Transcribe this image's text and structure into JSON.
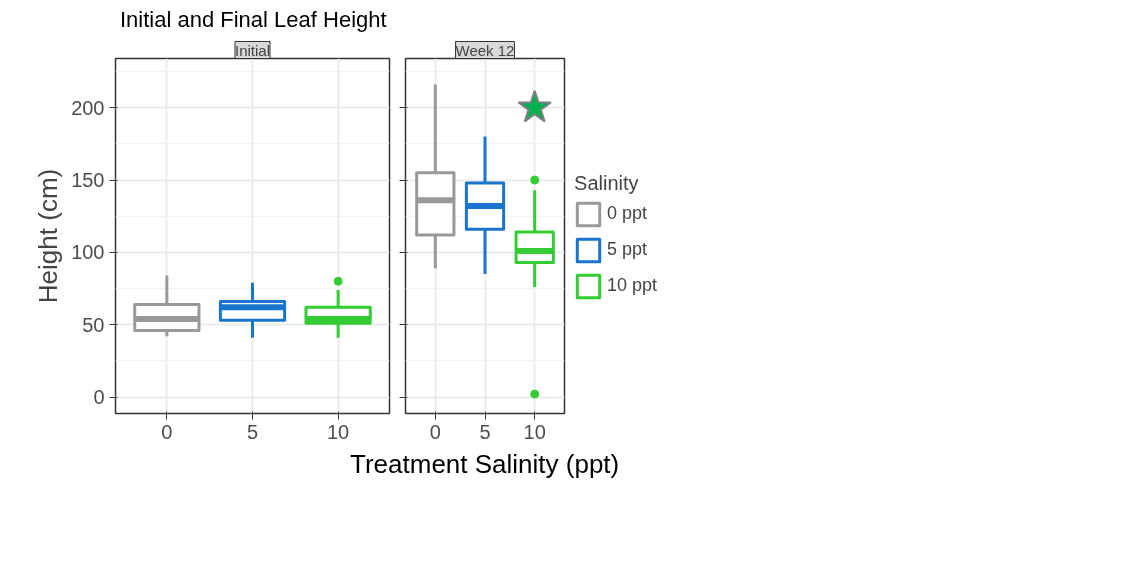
{
  "chart_data": [
    {
      "type": "box",
      "title": "Initial and Final Leaf Height",
      "subtitle": "Initial",
      "xlabel": "Treatment Salinity (ppt)",
      "ylabel": "Height (cm)",
      "categories": [
        "0",
        "5",
        "10"
      ],
      "ylim": [
        -11.4,
        234
      ],
      "yticks": [
        0,
        50,
        100,
        150,
        200
      ],
      "grid": true,
      "series": [
        {
          "color": "#999999",
          "boxes": [
            {
              "low": 42,
              "q1": 46,
              "median": 54,
              "q3": 64,
              "high": 84
            },
            null,
            null
          ]
        },
        {
          "color": "#1874cd",
          "boxes": [
            null,
            {
              "low": 41,
              "q1": 53,
              "median": 62,
              "q3": 66,
              "high": 79
            },
            null
          ]
        },
        {
          "color": "#33cc33",
          "boxes": [
            null,
            null,
            {
              "low": 41,
              "q1": 51,
              "median": 54,
              "q3": 62,
              "high": 74,
              "outliers": [
                80
              ]
            }
          ]
        }
      ]
    },
    {
      "type": "box",
      "subtitle": "Week 12",
      "legend_title": "Salinity",
      "legend": "right",
      "categories": [
        "0",
        "5",
        "10"
      ],
      "ylim": [
        -11.4,
        234
      ],
      "yticks": [
        0,
        50,
        100,
        150,
        200
      ],
      "grid": true,
      "tick_labels": "x",
      "series": [
        {
          "name": "0 ppt",
          "color": "#999999",
          "boxes": [
            {
              "low": 89,
              "q1": 112,
              "median": 136,
              "q3": 155,
              "high": 216
            },
            null,
            null
          ]
        },
        {
          "name": "5 ppt",
          "color": "#1874cd",
          "boxes": [
            null,
            {
              "low": 85,
              "q1": 116,
              "median": 132,
              "q3": 148,
              "high": 180
            },
            null
          ]
        },
        {
          "name": "10 ppt",
          "color": "#33cc33",
          "boxes": [
            null,
            null,
            {
              "low": 76,
              "q1": 93,
              "median": 101,
              "q3": 114,
              "high": 143,
              "outliers": [
                150,
                2
              ]
            }
          ]
        },
        {
          "type": "scatter",
          "marker": "star",
          "x": [
            "10"
          ],
          "values": [
            200
          ],
          "color": "#00b04f"
        }
      ]
    }
  ]
}
